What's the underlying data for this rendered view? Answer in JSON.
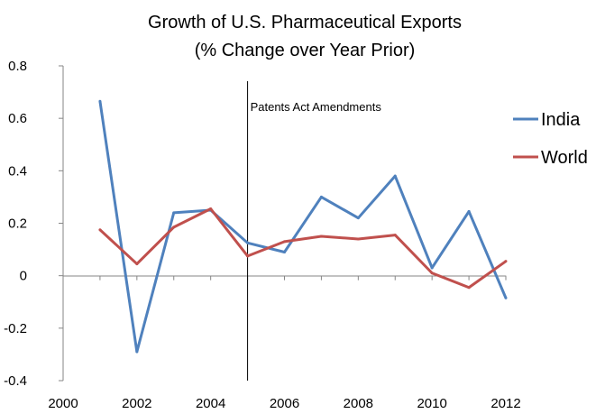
{
  "chart_data": {
    "type": "line",
    "title": "Growth of U.S. Pharmaceutical Exports",
    "subtitle": "(% Change over Year Prior)",
    "xlabel": "",
    "ylabel": "",
    "xlim": [
      2000,
      2012
    ],
    "ylim": [
      -0.4,
      0.8
    ],
    "x_ticks": [
      "2000",
      "2002",
      "2004",
      "2006",
      "2008",
      "2010",
      "2012"
    ],
    "y_ticks": [
      "0.8",
      "0.6",
      "0.4",
      "0.2",
      "0",
      "-0.2",
      "-0.4"
    ],
    "x": [
      2001,
      2002,
      2003,
      2004,
      2005,
      2006,
      2007,
      2008,
      2009,
      2010,
      2011,
      2012
    ],
    "series": [
      {
        "name": "India",
        "color": "#4F81BD",
        "values": [
          0.665,
          -0.29,
          0.24,
          0.25,
          0.125,
          0.09,
          0.3,
          0.22,
          0.38,
          0.03,
          0.245,
          -0.085
        ]
      },
      {
        "name": "World",
        "color": "#C0504D",
        "values": [
          0.175,
          0.045,
          0.185,
          0.255,
          0.075,
          0.13,
          0.15,
          0.14,
          0.155,
          0.01,
          -0.045,
          0.055
        ]
      }
    ],
    "annotation": {
      "label": "Patents Act Amendments",
      "x": 2005
    },
    "grid": false,
    "legend_position": "right"
  }
}
